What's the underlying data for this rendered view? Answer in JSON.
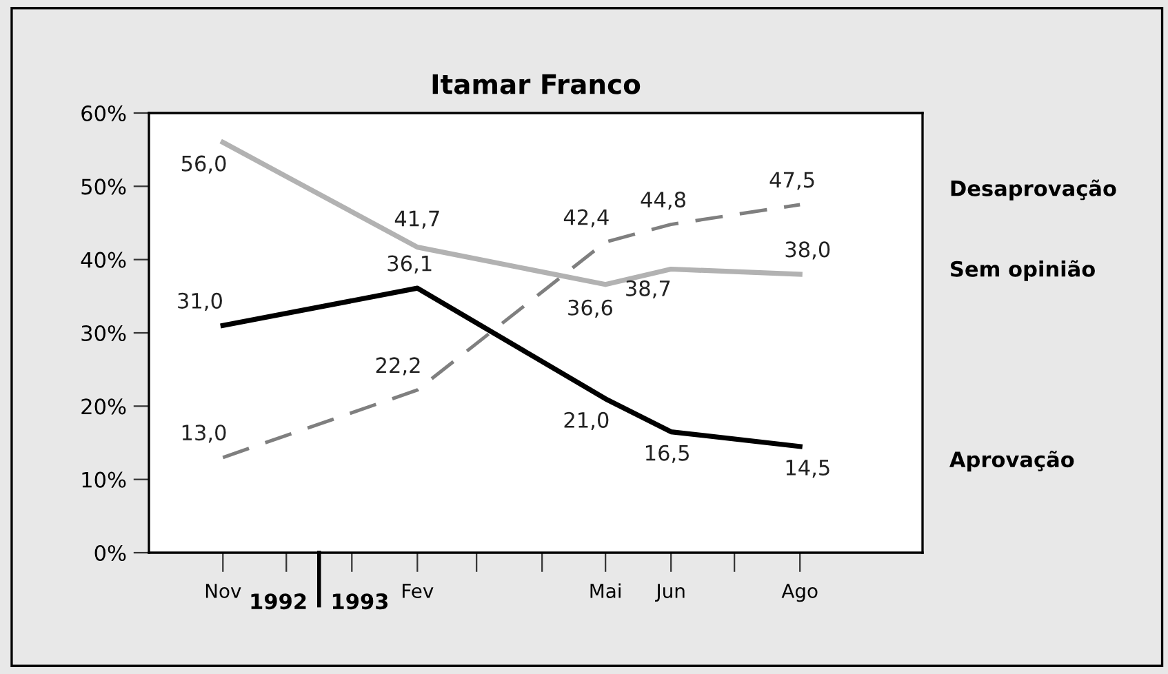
{
  "chart_data": {
    "type": "line",
    "title": "Itamar Franco",
    "series": [
      {
        "name": "Desaprovação",
        "color": "#7f7f7f",
        "line_style": "dashed",
        "x": [
          "1992-11",
          "1993-02",
          "1993-05",
          "1993-06",
          "1993-08"
        ],
        "values": [
          13.0,
          22.2,
          42.4,
          44.8,
          47.5
        ],
        "value_labels": [
          "13,0",
          "22,2",
          "42,4",
          "44,8",
          "47,5"
        ]
      },
      {
        "name": "Sem opinião",
        "color": "#b2b2b2",
        "line_style": "solid",
        "x": [
          "1992-11",
          "1993-02",
          "1993-05",
          "1993-06",
          "1993-08"
        ],
        "values": [
          56.0,
          41.7,
          36.6,
          38.7,
          38.0
        ],
        "value_labels": [
          "56,0",
          "41,7",
          "36,6",
          "38,7",
          "38,0"
        ]
      },
      {
        "name": "Aprovação",
        "color": "#000000",
        "line_style": "solid",
        "x": [
          "1992-11",
          "1993-02",
          "1993-05",
          "1993-06",
          "1993-08"
        ],
        "values": [
          31.0,
          36.1,
          21.0,
          16.5,
          14.5
        ],
        "value_labels": [
          "31,0",
          "36,1",
          "21,0",
          "16,5",
          "14,5"
        ]
      }
    ],
    "xlim": [
      "1992-09-27",
      "1993-09-28"
    ],
    "xticks": [
      {
        "value": "1992-11",
        "label": "Nov"
      },
      {
        "value": "1992-12",
        "label": null
      },
      {
        "value": "1993-01",
        "label": null
      },
      {
        "value": "1993-02",
        "label": "Fev"
      },
      {
        "value": "1993-03",
        "label": null
      },
      {
        "value": "1993-04",
        "label": null
      },
      {
        "value": "1993-05",
        "label": "Mai"
      },
      {
        "value": "1993-06",
        "label": "Jun"
      },
      {
        "value": "1993-07",
        "label": null
      },
      {
        "value": "1993-08",
        "label": "Ago"
      }
    ],
    "ylim": [
      0,
      60
    ],
    "yticks": [
      {
        "value": 0,
        "label": "0%"
      },
      {
        "value": 10,
        "label": "10%"
      },
      {
        "value": 20,
        "label": "20%"
      },
      {
        "value": 30,
        "label": "30%"
      },
      {
        "value": 40,
        "label": "40%"
      },
      {
        "value": 50,
        "label": "50%"
      },
      {
        "value": 60,
        "label": "60%"
      }
    ],
    "annotations": [
      "1992",
      "1993"
    ],
    "grid": false,
    "legend": false,
    "marker": "none"
  }
}
